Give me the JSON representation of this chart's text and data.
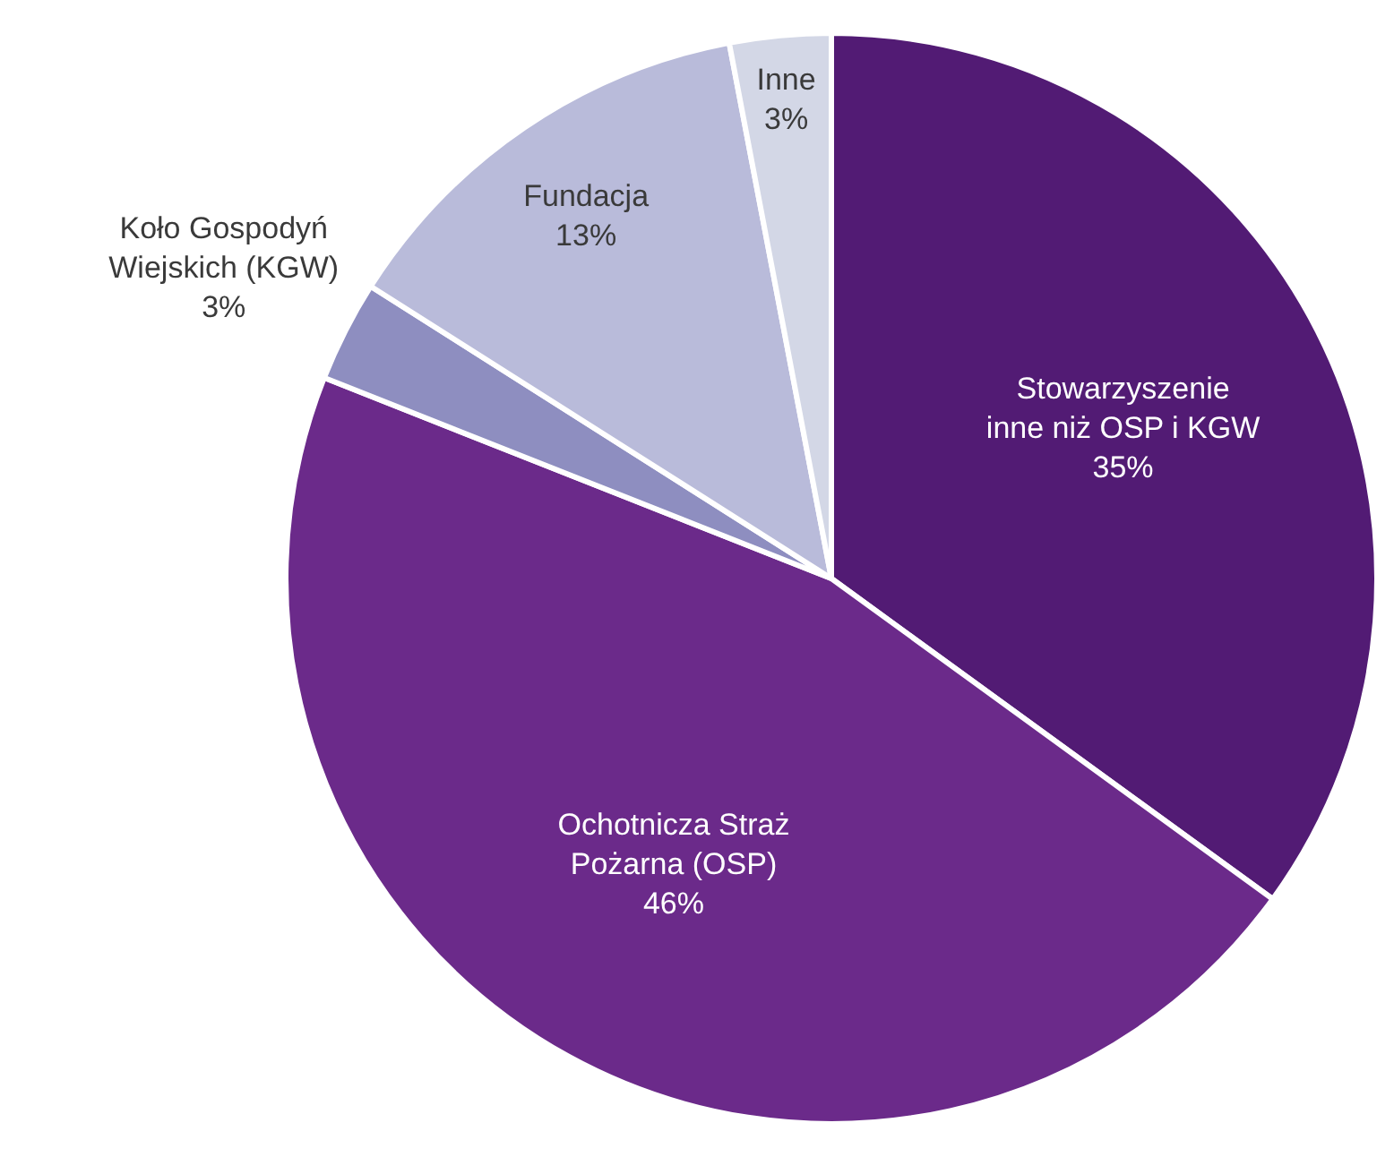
{
  "chart_data": {
    "type": "pie",
    "categories": [
      "Stowarzyszenie inne niż OSP i KGW",
      "Ochotnicza Straż Pożarna (OSP)",
      "Koło Gospodyń Wiejskich (KGW)",
      "Fundacja",
      "Inne"
    ],
    "values": [
      35,
      46,
      3,
      13,
      3
    ],
    "colors": [
      "#521b74",
      "#6b2a8a",
      "#8e8ec0",
      "#b9bbda",
      "#d3d7e6"
    ],
    "value_labels": [
      "35%",
      "46%",
      "3%",
      "13%",
      "3%"
    ],
    "legend": false
  }
}
